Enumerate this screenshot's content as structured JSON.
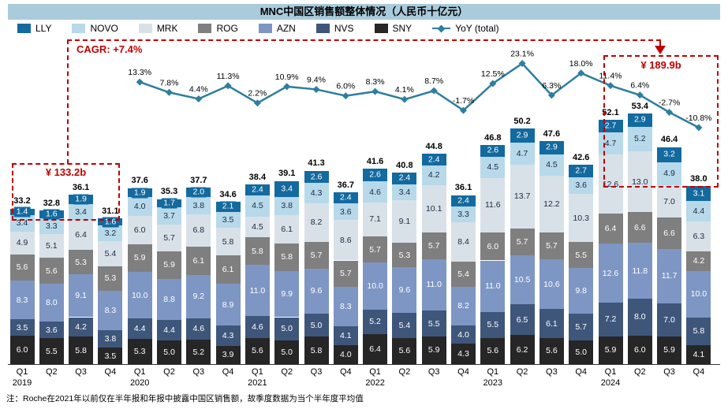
{
  "title": "MNC中国区销售额整体情况（人民币十亿元）",
  "note": "注：Roche在2021年以前仅在半年报和年报中披露中国区销售额，故季度数据为当个半年度平均值",
  "annotations": {
    "cagr_label": "CAGR: +7.4%",
    "box_2019_label": "¥ 133.2b",
    "box_2024_label": "¥ 189.9b",
    "accent_color": "#C00000"
  },
  "chart_data": {
    "type": "bar",
    "subtype": "stacked-columns-with-yoy-line",
    "title": "MNC中国区销售额整体情况（人民币十亿元）",
    "unit": "RMB billions (人民币十亿元)",
    "grid": false,
    "legend_position": "top-left",
    "quarters": [
      "Q1",
      "Q2",
      "Q3",
      "Q4",
      "Q1",
      "Q2",
      "Q3",
      "Q4",
      "Q1",
      "Q2",
      "Q3",
      "Q4",
      "Q1",
      "Q2",
      "Q3",
      "Q4",
      "Q1",
      "Q2",
      "Q3",
      "Q4",
      "Q1",
      "Q2",
      "Q3",
      "Q4"
    ],
    "years": [
      "2019",
      "2020",
      "2021",
      "2022",
      "2023",
      "2024"
    ],
    "series": [
      {
        "name": "SNY",
        "color": "#262626",
        "text_color": "#FFFFFF",
        "values": [
          6.0,
          5.5,
          5.8,
          3.5,
          5.3,
          5.0,
          5.2,
          3.9,
          5.6,
          5.0,
          5.8,
          4.0,
          6.4,
          5.6,
          5.9,
          4.3,
          5.6,
          6.2,
          5.6,
          5.0,
          5.9,
          6.0,
          5.9,
          4.1
        ]
      },
      {
        "name": "NVS",
        "color": "#3F567B",
        "text_color": "#FFFFFF",
        "values": [
          3.5,
          3.6,
          4.2,
          3.8,
          4.4,
          4.4,
          4.6,
          4.3,
          4.6,
          5.0,
          5.0,
          4.1,
          5.2,
          5.4,
          5.5,
          4.0,
          5.5,
          6.5,
          6.1,
          5.7,
          7.2,
          8.0,
          7.0,
          5.8
        ]
      },
      {
        "name": "AZN",
        "color": "#7E96C4",
        "text_color": "#FFFFFF",
        "values": [
          8.3,
          8.0,
          9.1,
          8.3,
          10.0,
          8.8,
          9.2,
          8.9,
          11.0,
          9.9,
          9.6,
          8.3,
          10.0,
          9.6,
          11.0,
          8.2,
          11.0,
          10.5,
          10.6,
          9.8,
          12.6,
          11.8,
          11.7,
          10.0
        ]
      },
      {
        "name": "ROG",
        "color": "#7F7F7F",
        "text_color": "#FFFFFF",
        "values": [
          5.6,
          5.6,
          5.3,
          5.3,
          5.9,
          5.9,
          6.1,
          6.1,
          5.8,
          5.8,
          5.7,
          5.7,
          5.7,
          5.3,
          5.7,
          5.4,
          6.0,
          5.7,
          5.7,
          5.5,
          6.4,
          6.6,
          6.6,
          4.2
        ]
      },
      {
        "name": "MRK",
        "color": "#D9E1E8",
        "text_color": "#1B2A41",
        "values": [
          4.9,
          5.1,
          6.4,
          5.4,
          6.0,
          5.7,
          6.8,
          5.8,
          4.5,
          6.1,
          8.2,
          8.6,
          7.1,
          9.1,
          10.1,
          8.4,
          11.6,
          13.7,
          12.2,
          10.3,
          12.6,
          13.0,
          7.0,
          6.3
        ]
      },
      {
        "name": "NOVO",
        "color": "#B7D9EA",
        "text_color": "#1B2A41",
        "values": [
          3.4,
          3.3,
          3.4,
          3.2,
          4.0,
          3.7,
          3.8,
          3.5,
          4.5,
          3.8,
          4.3,
          3.6,
          4.6,
          3.4,
          4.2,
          3.3,
          4.5,
          4.7,
          4.5,
          3.6,
          4.7,
          5.2,
          4.9,
          4.4
        ]
      },
      {
        "name": "LLY",
        "color": "#136A9F",
        "text_color": "#FFFFFF",
        "chip": true,
        "values": [
          1.4,
          1.6,
          1.9,
          1.6,
          1.9,
          1.7,
          2.0,
          2.1,
          2.4,
          3.4,
          2.6,
          2.4,
          2.6,
          2.4,
          2.4,
          2.4,
          2.6,
          2.9,
          2.9,
          2.7,
          2.7,
          2.9,
          3.2,
          3.1
        ]
      }
    ],
    "totals": [
      33.2,
      32.8,
      36.1,
      31.1,
      37.6,
      35.3,
      37.7,
      34.6,
      38.4,
      39.1,
      41.3,
      36.7,
      41.6,
      40.8,
      44.8,
      36.1,
      46.8,
      50.2,
      47.6,
      42.6,
      52.1,
      53.4,
      46.4,
      38.0
    ],
    "yoy": {
      "name": "YoY (total)",
      "color": "#2E7E9E",
      "start_index": 4,
      "values_pct": [
        13.3,
        7.8,
        4.4,
        11.3,
        2.2,
        10.9,
        9.4,
        6.0,
        8.3,
        4.1,
        8.7,
        -1.7,
        12.5,
        23.1,
        6.3,
        18.0,
        11.4,
        6.4,
        -2.7,
        -10.8
      ]
    }
  }
}
